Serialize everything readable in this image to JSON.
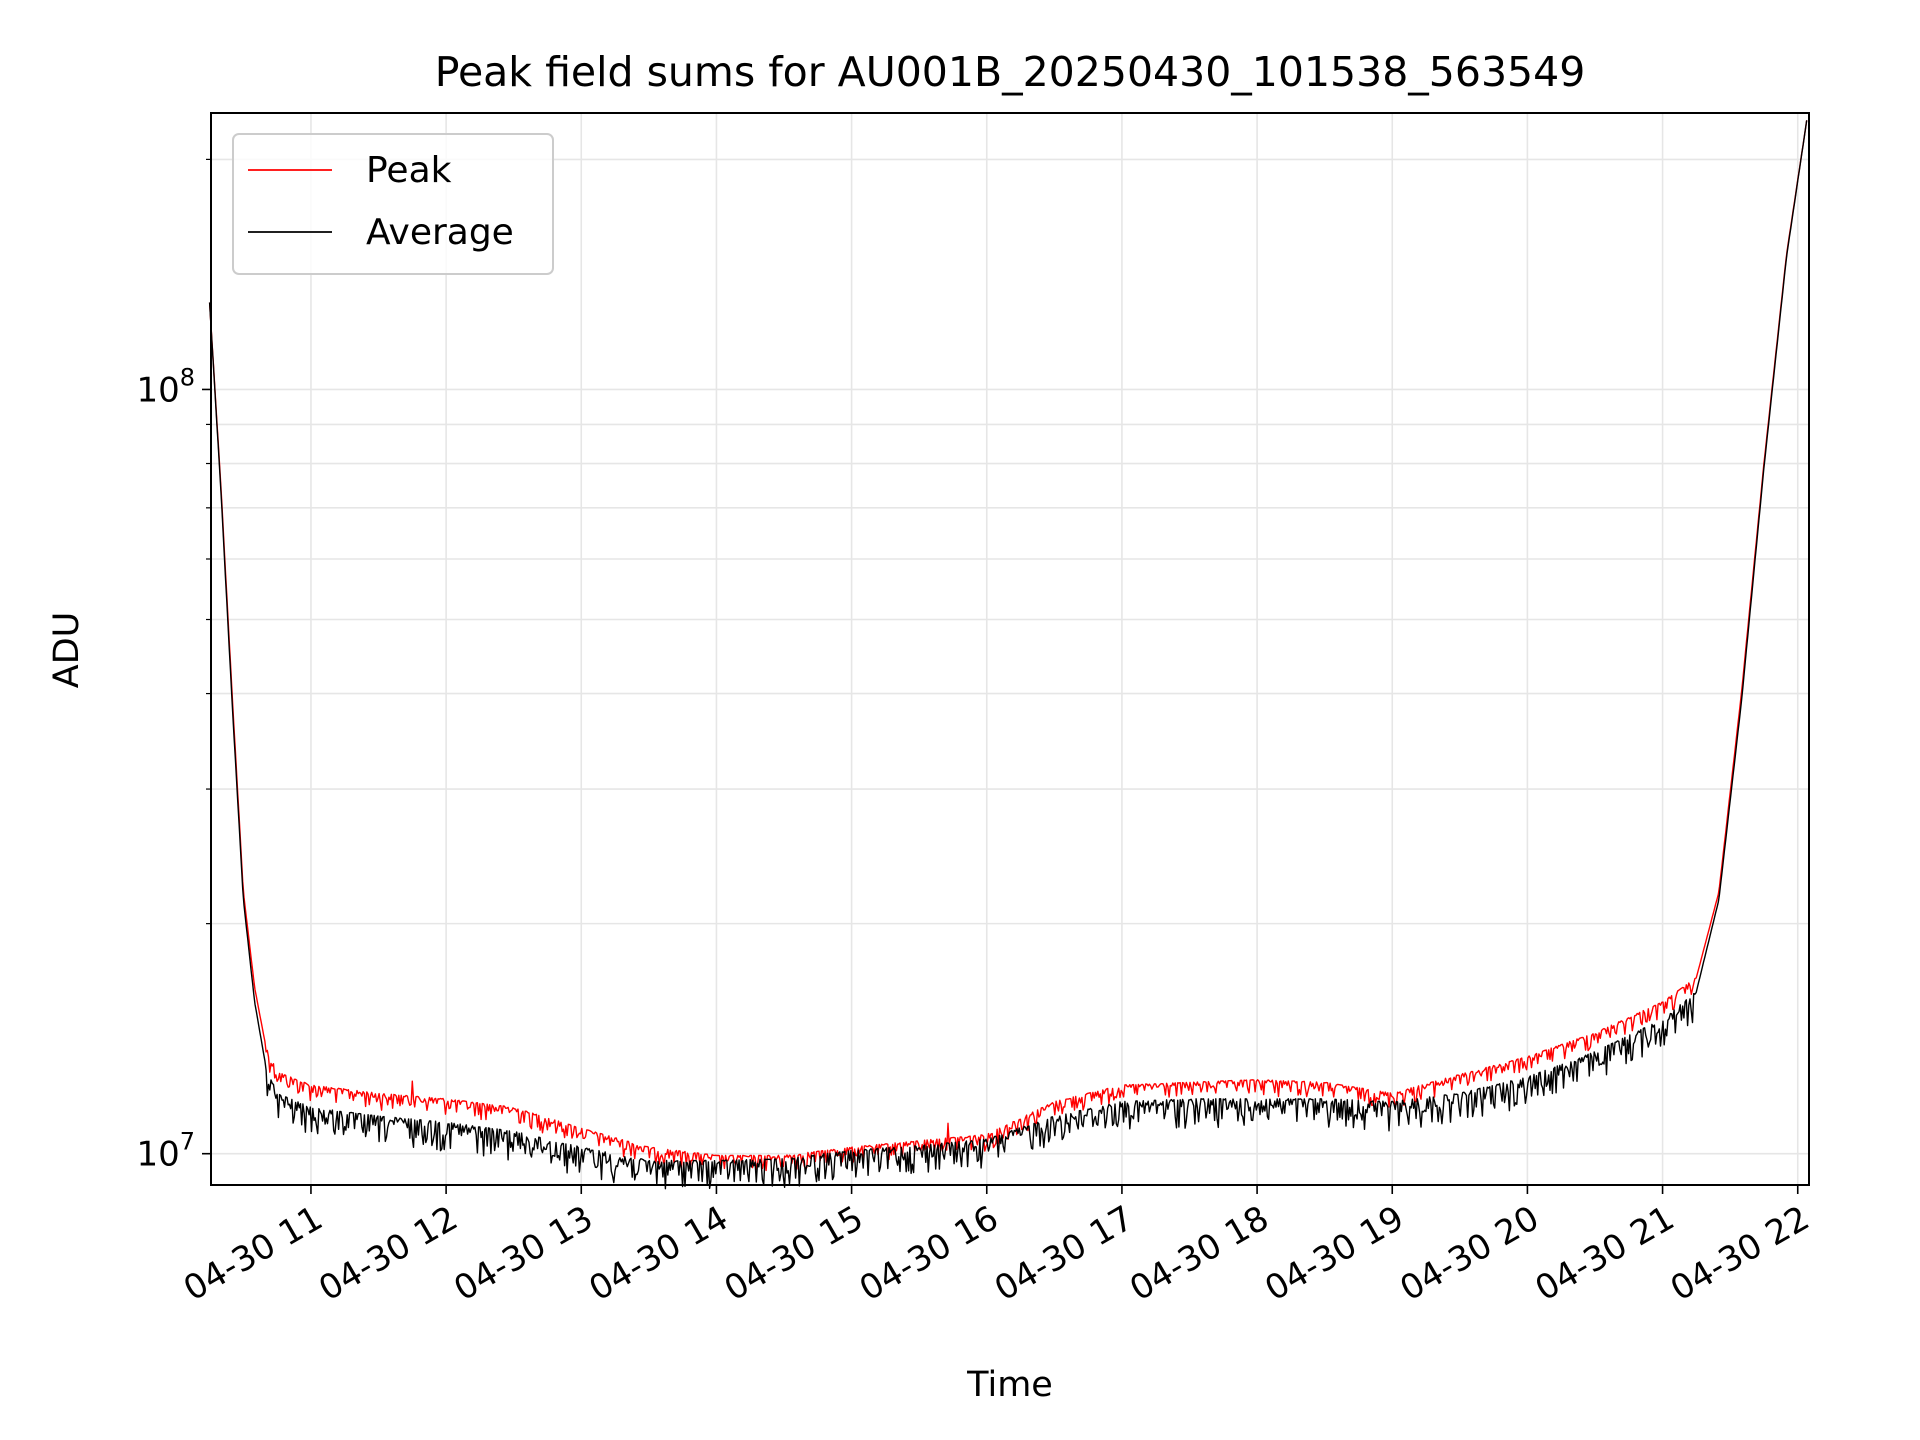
{
  "chart_data": {
    "type": "line",
    "title": "Peak field sums for AU001B_20250430_101538_563549",
    "xlabel": "Time",
    "ylabel": "ADU",
    "y_scale": "log",
    "ylim": [
      9100000,
      230000000
    ],
    "xlim": [
      "2025-04-30 10:15:38",
      "2025-04-30 22:05:00"
    ],
    "grid": true,
    "legend_position": "top-left",
    "x_tick_labels": [
      "04-30 11",
      "04-30 12",
      "04-30 13",
      "04-30 14",
      "04-30 15",
      "04-30 16",
      "04-30 17",
      "04-30 18",
      "04-30 19",
      "04-30 20",
      "04-30 21",
      "04-30 22"
    ],
    "x_tick_values": [
      "2025-04-30 11:00",
      "2025-04-30 12:00",
      "2025-04-30 13:00",
      "2025-04-30 14:00",
      "2025-04-30 15:00",
      "2025-04-30 16:00",
      "2025-04-30 17:00",
      "2025-04-30 18:00",
      "2025-04-30 19:00",
      "2025-04-30 20:00",
      "2025-04-30 21:00",
      "2025-04-30 22:00"
    ],
    "y_tick_labels": [
      {
        "base": "10",
        "exp": "7",
        "value": 10000000
      },
      {
        "base": "10",
        "exp": "8",
        "value": 100000000
      }
    ],
    "series": [
      {
        "name": "Peak",
        "color": "#ff0000",
        "x": [
          "2025-04-30 10:15",
          "2025-04-30 10:20",
          "2025-04-30 10:25",
          "2025-04-30 10:30",
          "2025-04-30 10:35",
          "2025-04-30 10:40",
          "2025-04-30 10:45",
          "2025-04-30 11:00",
          "2025-04-30 11:30",
          "2025-04-30 12:00",
          "2025-04-30 12:30",
          "2025-04-30 13:00",
          "2025-04-30 13:30",
          "2025-04-30 14:00",
          "2025-04-30 14:30",
          "2025-04-30 15:00",
          "2025-04-30 15:30",
          "2025-04-30 16:00",
          "2025-04-30 16:30",
          "2025-04-30 17:00",
          "2025-04-30 17:30",
          "2025-04-30 18:00",
          "2025-04-30 18:30",
          "2025-04-30 19:00",
          "2025-04-30 19:30",
          "2025-04-30 20:00",
          "2025-04-30 20:30",
          "2025-04-30 21:00",
          "2025-04-30 21:15",
          "2025-04-30 21:25",
          "2025-04-30 21:35",
          "2025-04-30 21:45",
          "2025-04-30 21:55",
          "2025-04-30 22:04"
        ],
        "y": [
          130000000,
          75000000,
          40000000,
          22000000,
          16500000,
          13800000,
          12800000,
          12300000,
          12000000,
          11800000,
          11500000,
          10800000,
          10200000,
          9950000,
          9950000,
          10200000,
          10400000,
          10600000,
          11700000,
          12300000,
          12400000,
          12500000,
          12400000,
          12000000,
          12700000,
          13400000,
          14400000,
          15800000,
          17000000,
          22000000,
          40000000,
          80000000,
          150000000,
          225000000
        ]
      },
      {
        "name": "Average",
        "color": "#000000",
        "x": [
          "2025-04-30 10:15",
          "2025-04-30 10:20",
          "2025-04-30 10:25",
          "2025-04-30 10:30",
          "2025-04-30 10:35",
          "2025-04-30 10:40",
          "2025-04-30 10:45",
          "2025-04-30 11:00",
          "2025-04-30 11:30",
          "2025-04-30 12:00",
          "2025-04-30 12:30",
          "2025-04-30 13:00",
          "2025-04-30 13:30",
          "2025-04-30 14:00",
          "2025-04-30 14:30",
          "2025-04-30 15:00",
          "2025-04-30 15:30",
          "2025-04-30 16:00",
          "2025-04-30 16:30",
          "2025-04-30 17:00",
          "2025-04-30 17:30",
          "2025-04-30 18:00",
          "2025-04-30 18:30",
          "2025-04-30 19:00",
          "2025-04-30 19:30",
          "2025-04-30 20:00",
          "2025-04-30 20:30",
          "2025-04-30 21:00",
          "2025-04-30 21:15",
          "2025-04-30 21:25",
          "2025-04-30 21:35",
          "2025-04-30 21:45",
          "2025-04-30 21:55",
          "2025-04-30 22:04"
        ],
        "y": [
          130000000,
          74000000,
          39000000,
          21500000,
          15800000,
          13000000,
          12000000,
          11500000,
          11200000,
          11000000,
          10700000,
          10200000,
          9800000,
          9800000,
          9850000,
          10100000,
          10250000,
          10450000,
          11200000,
          11700000,
          11800000,
          11800000,
          11800000,
          11700000,
          12000000,
          12600000,
          13600000,
          15000000,
          16300000,
          21500000,
          39000000,
          79000000,
          149000000,
          225000000
        ]
      }
    ]
  }
}
